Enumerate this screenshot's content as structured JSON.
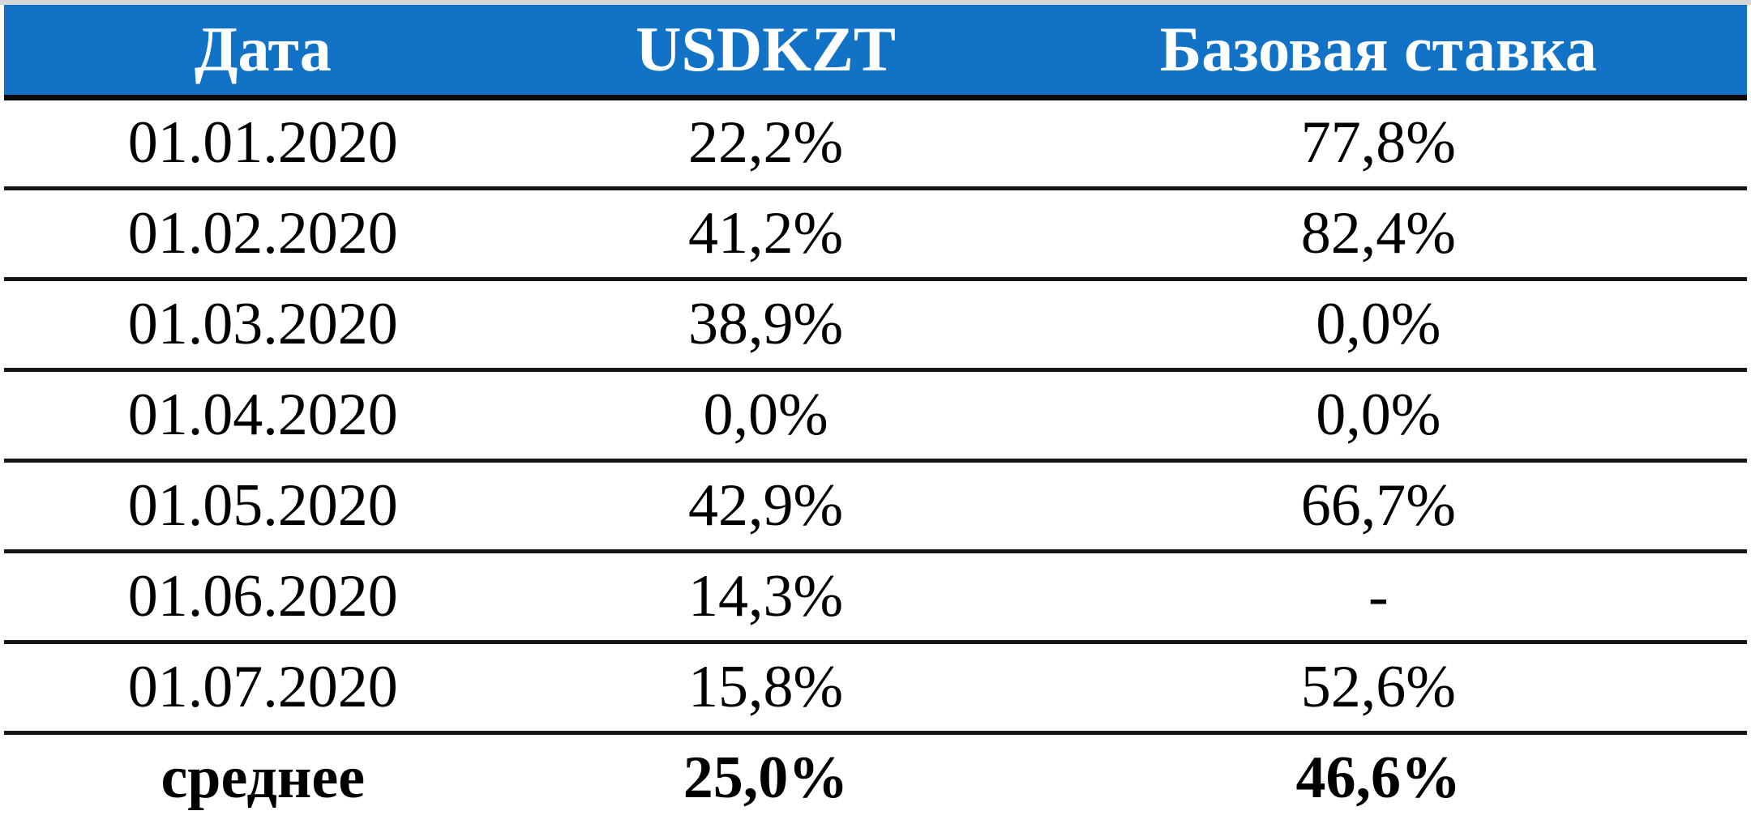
{
  "chart_data": {
    "type": "table",
    "columns": [
      "Дата",
      "USDKZT",
      "Базовая ставка"
    ],
    "rows": [
      [
        "01.01.2020",
        "22,2%",
        "77,8%"
      ],
      [
        "01.02.2020",
        "41,2%",
        "82,4%"
      ],
      [
        "01.03.2020",
        "38,9%",
        "0,0%"
      ],
      [
        "01.04.2020",
        "0,0%",
        "0,0%"
      ],
      [
        "01.05.2020",
        "42,9%",
        "66,7%"
      ],
      [
        "01.06.2020",
        "14,3%",
        "-"
      ],
      [
        "01.07.2020",
        "15,8%",
        "52,6%"
      ],
      [
        "среднее",
        "25,0%",
        "46,6%"
      ]
    ],
    "summary_row_label": "среднее",
    "layout": {
      "header_position": "top",
      "grid": "horizontal-rules-only",
      "value_alignment": "center"
    }
  },
  "colors": {
    "header_background": "#1272c6",
    "header_text": "#ffffff",
    "body_text": "#000000",
    "rule_lines": "#141414",
    "top_strip": "#d6d6d6",
    "page_background": "#ffffff"
  }
}
